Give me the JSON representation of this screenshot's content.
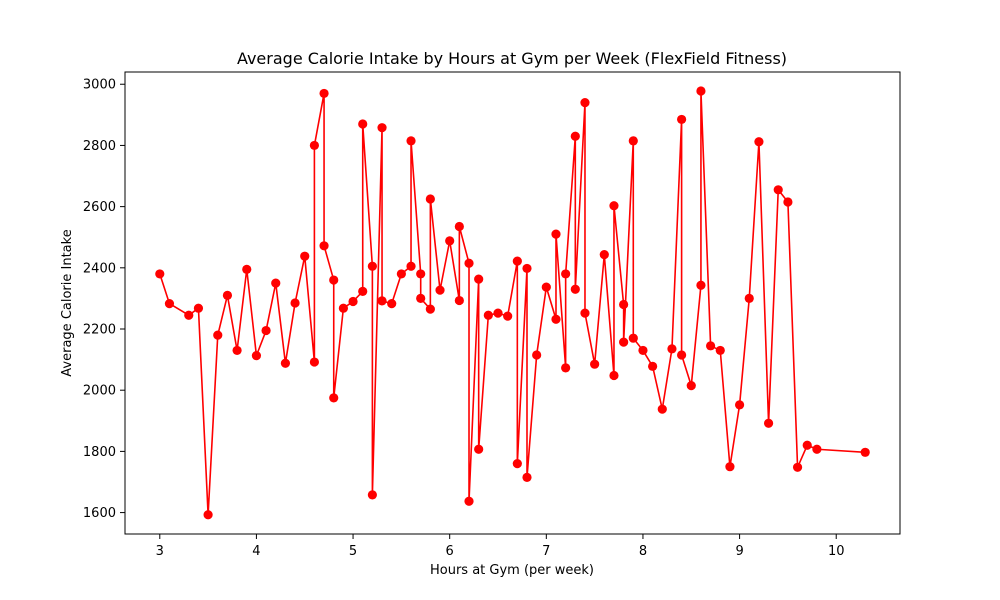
{
  "chart_data": {
    "type": "line",
    "title": "Average Calorie Intake by Hours at Gym per Week (FlexField Fitness)",
    "xlabel": "Hours at Gym (per week)",
    "ylabel": "Average Calorie Intake",
    "xlim": [
      2.64,
      10.66
    ],
    "ylim": [
      1530,
      3040
    ],
    "xticks": [
      3,
      4,
      5,
      6,
      7,
      8,
      9,
      10
    ],
    "yticks": [
      1600,
      1800,
      2000,
      2200,
      2400,
      2600,
      2800,
      3000
    ],
    "grid": false,
    "legend": "none",
    "series": [
      {
        "color": "#ff0000",
        "marker": "circle",
        "points": [
          [
            3.0,
            2380
          ],
          [
            3.1,
            2283
          ],
          [
            3.3,
            2245
          ],
          [
            3.4,
            2268
          ],
          [
            3.5,
            1593
          ],
          [
            3.6,
            2180
          ],
          [
            3.7,
            2310
          ],
          [
            3.8,
            2130
          ],
          [
            3.9,
            2395
          ],
          [
            4.0,
            2113
          ],
          [
            4.1,
            2195
          ],
          [
            4.2,
            2350
          ],
          [
            4.3,
            2088
          ],
          [
            4.4,
            2285
          ],
          [
            4.5,
            2438
          ],
          [
            4.6,
            2092
          ],
          [
            4.6,
            2800
          ],
          [
            4.7,
            2970
          ],
          [
            4.7,
            2472
          ],
          [
            4.8,
            2360
          ],
          [
            4.8,
            1975
          ],
          [
            4.9,
            2268
          ],
          [
            5.0,
            2290
          ],
          [
            5.1,
            2323
          ],
          [
            5.1,
            2870
          ],
          [
            5.2,
            2405
          ],
          [
            5.2,
            1658
          ],
          [
            5.3,
            2858
          ],
          [
            5.3,
            2292
          ],
          [
            5.4,
            2283
          ],
          [
            5.5,
            2380
          ],
          [
            5.6,
            2405
          ],
          [
            5.6,
            2815
          ],
          [
            5.7,
            2380
          ],
          [
            5.7,
            2300
          ],
          [
            5.8,
            2265
          ],
          [
            5.8,
            2625
          ],
          [
            5.9,
            2327
          ],
          [
            6.0,
            2488
          ],
          [
            6.1,
            2293
          ],
          [
            6.1,
            2535
          ],
          [
            6.2,
            2415
          ],
          [
            6.2,
            1637
          ],
          [
            6.3,
            2363
          ],
          [
            6.3,
            1807
          ],
          [
            6.4,
            2245
          ],
          [
            6.5,
            2252
          ],
          [
            6.6,
            2242
          ],
          [
            6.7,
            2422
          ],
          [
            6.7,
            1760
          ],
          [
            6.8,
            2398
          ],
          [
            6.8,
            1715
          ],
          [
            6.9,
            2115
          ],
          [
            7.0,
            2337
          ],
          [
            7.1,
            2232
          ],
          [
            7.1,
            2510
          ],
          [
            7.2,
            2073
          ],
          [
            7.2,
            2380
          ],
          [
            7.3,
            2830
          ],
          [
            7.3,
            2330
          ],
          [
            7.4,
            2940
          ],
          [
            7.4,
            2252
          ],
          [
            7.5,
            2085
          ],
          [
            7.6,
            2443
          ],
          [
            7.7,
            2048
          ],
          [
            7.7,
            2603
          ],
          [
            7.8,
            2280
          ],
          [
            7.8,
            2157
          ],
          [
            7.9,
            2815
          ],
          [
            7.9,
            2170
          ],
          [
            8.0,
            2130
          ],
          [
            8.1,
            2078
          ],
          [
            8.2,
            1938
          ],
          [
            8.3,
            2135
          ],
          [
            8.4,
            2885
          ],
          [
            8.4,
            2115
          ],
          [
            8.5,
            2015
          ],
          [
            8.6,
            2343
          ],
          [
            8.6,
            2978
          ],
          [
            8.7,
            2145
          ],
          [
            8.8,
            2130
          ],
          [
            8.9,
            1750
          ],
          [
            9.0,
            1952
          ],
          [
            9.1,
            2300
          ],
          [
            9.2,
            2812
          ],
          [
            9.3,
            1892
          ],
          [
            9.4,
            2655
          ],
          [
            9.5,
            2615
          ],
          [
            9.6,
            1748
          ],
          [
            9.7,
            1820
          ],
          [
            9.8,
            1807
          ],
          [
            10.3,
            1797
          ]
        ]
      }
    ]
  }
}
